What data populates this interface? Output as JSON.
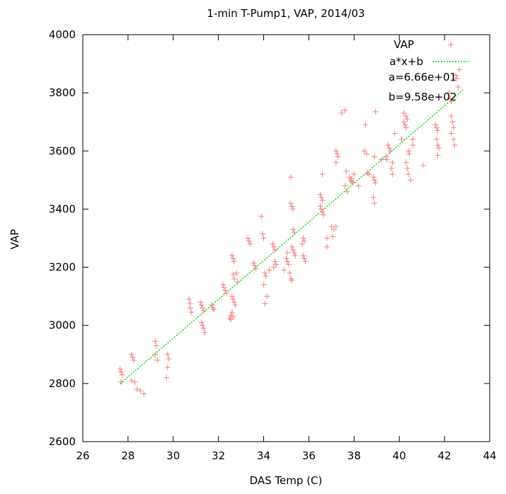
{
  "chart_data": {
    "type": "scatter",
    "title": "1-min T-Pump1, VAP, 2014/03",
    "xlabel": "DAS Temp (C)",
    "ylabel": "VAP",
    "xlim": [
      26,
      44
    ],
    "ylim": [
      2600,
      4000
    ],
    "xticks": [
      "26",
      "28",
      "30",
      "32",
      "34",
      "36",
      "38",
      "40",
      "42",
      "44"
    ],
    "yticks": [
      "2600",
      "2800",
      "3000",
      "3200",
      "3400",
      "3600",
      "3800",
      "4000"
    ],
    "grid": false,
    "legend_position": "top-right",
    "series": [
      {
        "name": "VAP",
        "kind": "points",
        "marker": "plus",
        "color": "#f08080",
        "points": [
          [
            27.65,
            2850
          ],
          [
            27.7,
            2840
          ],
          [
            27.75,
            2830
          ],
          [
            27.7,
            2805
          ],
          [
            28.15,
            2900
          ],
          [
            28.2,
            2890
          ],
          [
            28.25,
            2880
          ],
          [
            28.15,
            2810
          ],
          [
            28.3,
            2805
          ],
          [
            28.4,
            2780
          ],
          [
            28.55,
            2775
          ],
          [
            28.7,
            2765
          ],
          [
            29.2,
            2945
          ],
          [
            29.25,
            2930
          ],
          [
            29.2,
            2900
          ],
          [
            29.3,
            2880
          ],
          [
            29.75,
            2900
          ],
          [
            29.8,
            2885
          ],
          [
            29.75,
            2855
          ],
          [
            29.7,
            2820
          ],
          [
            30.7,
            3090
          ],
          [
            30.75,
            3075
          ],
          [
            30.75,
            3060
          ],
          [
            30.8,
            3045
          ],
          [
            31.2,
            3080
          ],
          [
            31.25,
            3070
          ],
          [
            31.3,
            3060
          ],
          [
            31.35,
            3050
          ],
          [
            31.25,
            3010
          ],
          [
            31.3,
            3000
          ],
          [
            31.35,
            2990
          ],
          [
            31.4,
            2975
          ],
          [
            31.7,
            3070
          ],
          [
            31.75,
            3060
          ],
          [
            31.8,
            3055
          ],
          [
            32.2,
            3140
          ],
          [
            32.25,
            3130
          ],
          [
            32.3,
            3120
          ],
          [
            32.35,
            3110
          ],
          [
            32.55,
            3035
          ],
          [
            32.5,
            3025
          ],
          [
            32.6,
            3240
          ],
          [
            32.65,
            3230
          ],
          [
            32.7,
            3220
          ],
          [
            32.65,
            3175
          ],
          [
            32.7,
            3160
          ],
          [
            32.6,
            3100
          ],
          [
            32.65,
            3090
          ],
          [
            32.7,
            3080
          ],
          [
            32.75,
            3070
          ],
          [
            32.6,
            3045
          ],
          [
            32.65,
            3030
          ],
          [
            32.55,
            3020
          ],
          [
            32.8,
            3180
          ],
          [
            32.85,
            3150
          ],
          [
            33.3,
            3300
          ],
          [
            33.35,
            3290
          ],
          [
            33.4,
            3280
          ],
          [
            33.55,
            3215
          ],
          [
            33.6,
            3205
          ],
          [
            33.65,
            3195
          ],
          [
            33.9,
            3375
          ],
          [
            33.95,
            3315
          ],
          [
            34.0,
            3300
          ],
          [
            34.05,
            3180
          ],
          [
            34.1,
            3170
          ],
          [
            34.0,
            3140
          ],
          [
            34.15,
            3100
          ],
          [
            34.05,
            3075
          ],
          [
            34.25,
            3190
          ],
          [
            34.4,
            3280
          ],
          [
            34.45,
            3270
          ],
          [
            34.5,
            3260
          ],
          [
            34.5,
            3220
          ],
          [
            34.55,
            3210
          ],
          [
            34.45,
            3200
          ],
          [
            34.9,
            3190
          ],
          [
            35.0,
            3230
          ],
          [
            35.05,
            3220
          ],
          [
            35.1,
            3210
          ],
          [
            35.05,
            3250
          ],
          [
            35.15,
            3180
          ],
          [
            35.2,
            3160
          ],
          [
            35.25,
            3155
          ],
          [
            35.2,
            3420
          ],
          [
            35.25,
            3410
          ],
          [
            35.3,
            3400
          ],
          [
            35.2,
            3510
          ],
          [
            35.3,
            3330
          ],
          [
            35.35,
            3320
          ],
          [
            35.25,
            3270
          ],
          [
            35.3,
            3260
          ],
          [
            35.35,
            3250
          ],
          [
            35.4,
            3240
          ],
          [
            35.75,
            3300
          ],
          [
            35.8,
            3290
          ],
          [
            35.7,
            3280
          ],
          [
            35.75,
            3240
          ],
          [
            35.8,
            3230
          ],
          [
            35.85,
            3220
          ],
          [
            36.5,
            3450
          ],
          [
            36.55,
            3440
          ],
          [
            36.6,
            3430
          ],
          [
            36.5,
            3410
          ],
          [
            36.55,
            3400
          ],
          [
            36.6,
            3390
          ],
          [
            36.65,
            3380
          ],
          [
            36.6,
            3520
          ],
          [
            36.8,
            3300
          ],
          [
            36.8,
            3270
          ],
          [
            37.0,
            3340
          ],
          [
            37.1,
            3330
          ],
          [
            37.05,
            3305
          ],
          [
            37.2,
            3600
          ],
          [
            37.25,
            3590
          ],
          [
            37.3,
            3580
          ],
          [
            37.2,
            3560
          ],
          [
            37.2,
            3340
          ],
          [
            37.45,
            3730
          ],
          [
            37.6,
            3740
          ],
          [
            37.6,
            3480
          ],
          [
            37.7,
            3460
          ],
          [
            37.65,
            3530
          ],
          [
            37.8,
            3510
          ],
          [
            37.85,
            3500
          ],
          [
            37.9,
            3495
          ],
          [
            37.95,
            3490
          ],
          [
            37.9,
            3505
          ],
          [
            38.0,
            3520
          ],
          [
            38.2,
            3480
          ],
          [
            38.5,
            3690
          ],
          [
            38.45,
            3600
          ],
          [
            38.55,
            3590
          ],
          [
            38.6,
            3525
          ],
          [
            38.65,
            3520
          ],
          [
            38.85,
            3510
          ],
          [
            38.9,
            3500
          ],
          [
            38.95,
            3490
          ],
          [
            38.85,
            3440
          ],
          [
            38.9,
            3420
          ],
          [
            38.95,
            3735
          ],
          [
            38.9,
            3580
          ],
          [
            39.2,
            3570
          ],
          [
            39.4,
            3580
          ],
          [
            39.45,
            3570
          ],
          [
            39.5,
            3620
          ],
          [
            39.55,
            3610
          ],
          [
            39.6,
            3600
          ],
          [
            39.7,
            3560
          ],
          [
            39.65,
            3540
          ],
          [
            39.7,
            3520
          ],
          [
            39.8,
            3660
          ],
          [
            40.1,
            3640
          ],
          [
            40.2,
            3700
          ],
          [
            40.25,
            3690
          ],
          [
            40.3,
            3680
          ],
          [
            40.2,
            3730
          ],
          [
            40.3,
            3720
          ],
          [
            40.35,
            3710
          ],
          [
            40.4,
            3600
          ],
          [
            40.45,
            3590
          ],
          [
            40.3,
            3560
          ],
          [
            40.35,
            3540
          ],
          [
            40.4,
            3520
          ],
          [
            40.5,
            3500
          ],
          [
            40.6,
            3640
          ],
          [
            40.6,
            3620
          ],
          [
            41.05,
            3550
          ],
          [
            41.6,
            3690
          ],
          [
            41.65,
            3680
          ],
          [
            41.7,
            3670
          ],
          [
            41.65,
            3640
          ],
          [
            41.7,
            3620
          ],
          [
            41.75,
            3610
          ],
          [
            41.7,
            3585
          ],
          [
            42.2,
            3800
          ],
          [
            42.25,
            3780
          ],
          [
            42.3,
            3770
          ],
          [
            42.3,
            3720
          ],
          [
            42.35,
            3700
          ],
          [
            42.4,
            3680
          ],
          [
            42.3,
            3660
          ],
          [
            42.4,
            3640
          ],
          [
            42.45,
            3620
          ],
          [
            42.5,
            3860
          ],
          [
            42.55,
            3850
          ],
          [
            42.6,
            3820
          ],
          [
            42.65,
            3880
          ]
        ]
      },
      {
        "name": "a*x+b",
        "kind": "line",
        "color": "#00dd00",
        "dash": "dotted",
        "a": 66.6,
        "b": 958,
        "x_range": [
          27.65,
          42.85
        ]
      }
    ],
    "annotations": [
      "a=6.66e+01",
      "b=9.58e+02"
    ]
  }
}
